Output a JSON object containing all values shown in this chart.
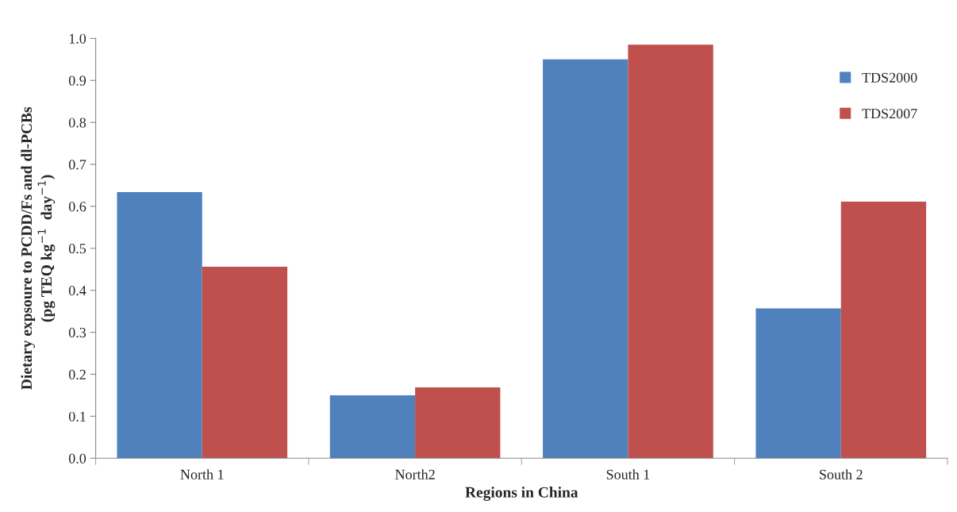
{
  "chart_data": {
    "type": "bar",
    "categories": [
      "North 1",
      "North2",
      "South 1",
      "South 2"
    ],
    "series": [
      {
        "name": "TDS2000",
        "color": "#4f81bd",
        "values": [
          0.634,
          0.15,
          0.95,
          0.357
        ]
      },
      {
        "name": "TDS2007",
        "color": "#c0504d",
        "values": [
          0.456,
          0.169,
          0.985,
          0.611
        ]
      }
    ],
    "xlabel": "Regions in China",
    "ylabel": "Dietary expsoure to PCDD/Fs and dl-PCBs\n(pg TEQ kg$^{−1}$  day$^{−1}$)",
    "ylim": [
      0.0,
      1.0
    ],
    "yticks": [
      {
        "value": 0.0,
        "label": "0.0"
      },
      0.1,
      0.2,
      0.3,
      0.4,
      0.5,
      0.6,
      0.7,
      0.8,
      0.9,
      {
        "value": 1.0,
        "label": "1.0"
      }
    ],
    "legend": "top right",
    "grid": false
  }
}
